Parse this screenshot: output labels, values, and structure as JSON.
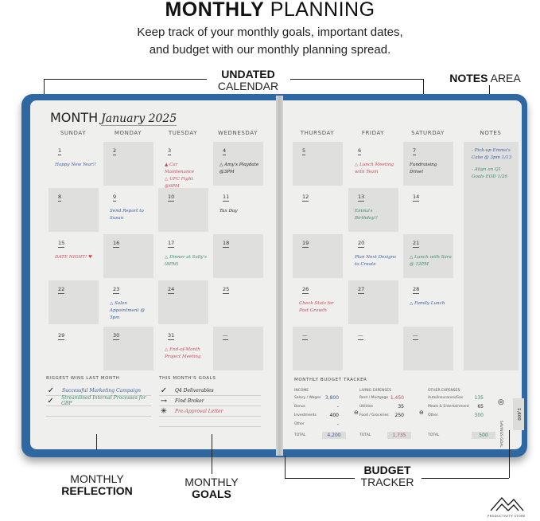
{
  "header": {
    "title_bold": "MONTHLY",
    "title_rest": "PLANNING",
    "subtitle_line1": "Keep track of your monthly goals, important dates,",
    "subtitle_line2": "and budget with our monthly planning spread."
  },
  "callouts": {
    "calendar": {
      "bold": "UNDATED",
      "rest": "CALENDAR"
    },
    "notes": {
      "bold": "NOTES",
      "rest": "AREA"
    },
    "reflection": {
      "rest": "MONTHLY",
      "bold": "REFLECTION"
    },
    "goals": {
      "rest": "MONTHLY",
      "bold": "GOALS"
    },
    "budget": {
      "bold": "BUDGET",
      "rest": "TRACKER"
    }
  },
  "colors": {
    "cover": "#2f67a0",
    "blue": "#3b5c9e",
    "red": "#c64c58",
    "green": "#3a8a68",
    "black": "#222222"
  },
  "planner": {
    "month_label": "MONTH",
    "month_value": "January 2025",
    "left_days": [
      "SUNDAY",
      "MONDAY",
      "TUESDAY",
      "WEDNESDAY"
    ],
    "right_days": [
      "THURSDAY",
      "FRIDAY",
      "SATURDAY"
    ],
    "notes_header": "NOTES",
    "weeks": [
      [
        {
          "d": "1",
          "n": "Happy New Year!!",
          "c": "blue"
        },
        {
          "d": "2"
        },
        {
          "d": "3",
          "n": "▲ Car Maintenance\n△ UFC Fight @6PM",
          "c": "red"
        },
        {
          "d": "4",
          "n": "△ Amy's Playdate @3PM",
          "c": "black"
        },
        {
          "d": "5"
        },
        {
          "d": "6",
          "n": "△ Lunch Meeting with Team",
          "c": "red"
        },
        {
          "d": "7",
          "n": "Fundraising Drive!",
          "c": "black"
        }
      ],
      [
        {
          "d": "8"
        },
        {
          "d": "9",
          "n": "Send Report to Susan",
          "c": "blue"
        },
        {
          "d": "10"
        },
        {
          "d": "11",
          "n": "Tax Day",
          "c": "black"
        },
        {
          "d": "12"
        },
        {
          "d": "13",
          "n": "Emma's Birthday!!",
          "c": "green"
        },
        {
          "d": "14"
        }
      ],
      [
        {
          "d": "15",
          "n": "DATE NIGHT! ♥",
          "c": "red"
        },
        {
          "d": "16"
        },
        {
          "d": "17",
          "n": "△ Dinner at Sally's (8PM)",
          "c": "green"
        },
        {
          "d": "18"
        },
        {
          "d": "19"
        },
        {
          "d": "20",
          "n": "Plan Next Designs to Create",
          "c": "blue"
        },
        {
          "d": "21",
          "n": "△ Lunch with Sara @ 12PM",
          "c": "green"
        }
      ],
      [
        {
          "d": "22"
        },
        {
          "d": "23",
          "n": "△ Salon Appointment @ 5pm",
          "c": "blue"
        },
        {
          "d": "24"
        },
        {
          "d": "25"
        },
        {
          "d": "26",
          "n": "Check Stats for Post Growth",
          "c": "red"
        },
        {
          "d": "27"
        },
        {
          "d": "28",
          "n": "△ Family Lunch",
          "c": "blue"
        }
      ],
      [
        {
          "d": "29"
        },
        {
          "d": "30"
        },
        {
          "d": "31",
          "n": "△ End-of-Month Project Meeting",
          "c": "red"
        },
        {
          "d": "—"
        },
        {
          "d": "—"
        },
        {
          "d": "—"
        },
        {
          "d": "—"
        }
      ]
    ],
    "notes": [
      {
        "t": "- Pick-up Emma's Cake @ 3pm 1/13",
        "c": "blue"
      },
      {
        "t": "- Align on Q1 Goals EOD 1/26",
        "c": "green"
      }
    ],
    "wins": {
      "title": "BIGGEST WINS LAST MONTH",
      "items": [
        {
          "icon": "check",
          "t": "Successful Marketing Campaign",
          "c": "blue"
        },
        {
          "icon": "check",
          "t": "Streamlined Internal Processes for GBP",
          "c": "green"
        }
      ]
    },
    "goals": {
      "title": "THIS MONTH'S GOALS",
      "items": [
        {
          "icon": "check",
          "t": "Q4 Deliverables",
          "c": "black"
        },
        {
          "icon": "arrow",
          "t": "Find Broker",
          "c": "black"
        },
        {
          "icon": "star",
          "t": "Pre-Approval Letter",
          "c": "red"
        }
      ]
    },
    "budget": {
      "title": "MONTHLY BUDGET TRACKER",
      "columns": [
        {
          "header": "INCOME",
          "rows": [
            [
              "Salary / Wages",
              "3,800",
              "blue"
            ],
            [
              "Bonus",
              "-",
              "black"
            ],
            [
              "Investments",
              "400",
              "black"
            ],
            [
              "Other",
              "-",
              "black"
            ]
          ],
          "total": "4,200",
          "total_color": "blue"
        },
        {
          "header": "LIVING EXPENSES",
          "rows": [
            [
              "Rent / Mortgage",
              "1,450",
              "red"
            ],
            [
              "Utilities",
              "35",
              "black"
            ],
            [
              "Food / Groceries",
              "250",
              "black"
            ]
          ],
          "total": "1,735",
          "total_color": "red"
        },
        {
          "header": "OTHER EXPENSES",
          "rows": [
            [
              "Auto/Insurance/Gas",
              "135",
              "green"
            ],
            [
              "Meals & Entertainment",
              "65",
              "black"
            ],
            [
              "Other",
              "300",
              "green"
            ]
          ],
          "total": "500",
          "total_color": "green"
        }
      ],
      "total_label": "TOTAL",
      "savings_label": "SAVINGS GOAL",
      "savings_value": "1,600"
    }
  },
  "brand": {
    "name": "PRODUCTIVITY STORE"
  }
}
